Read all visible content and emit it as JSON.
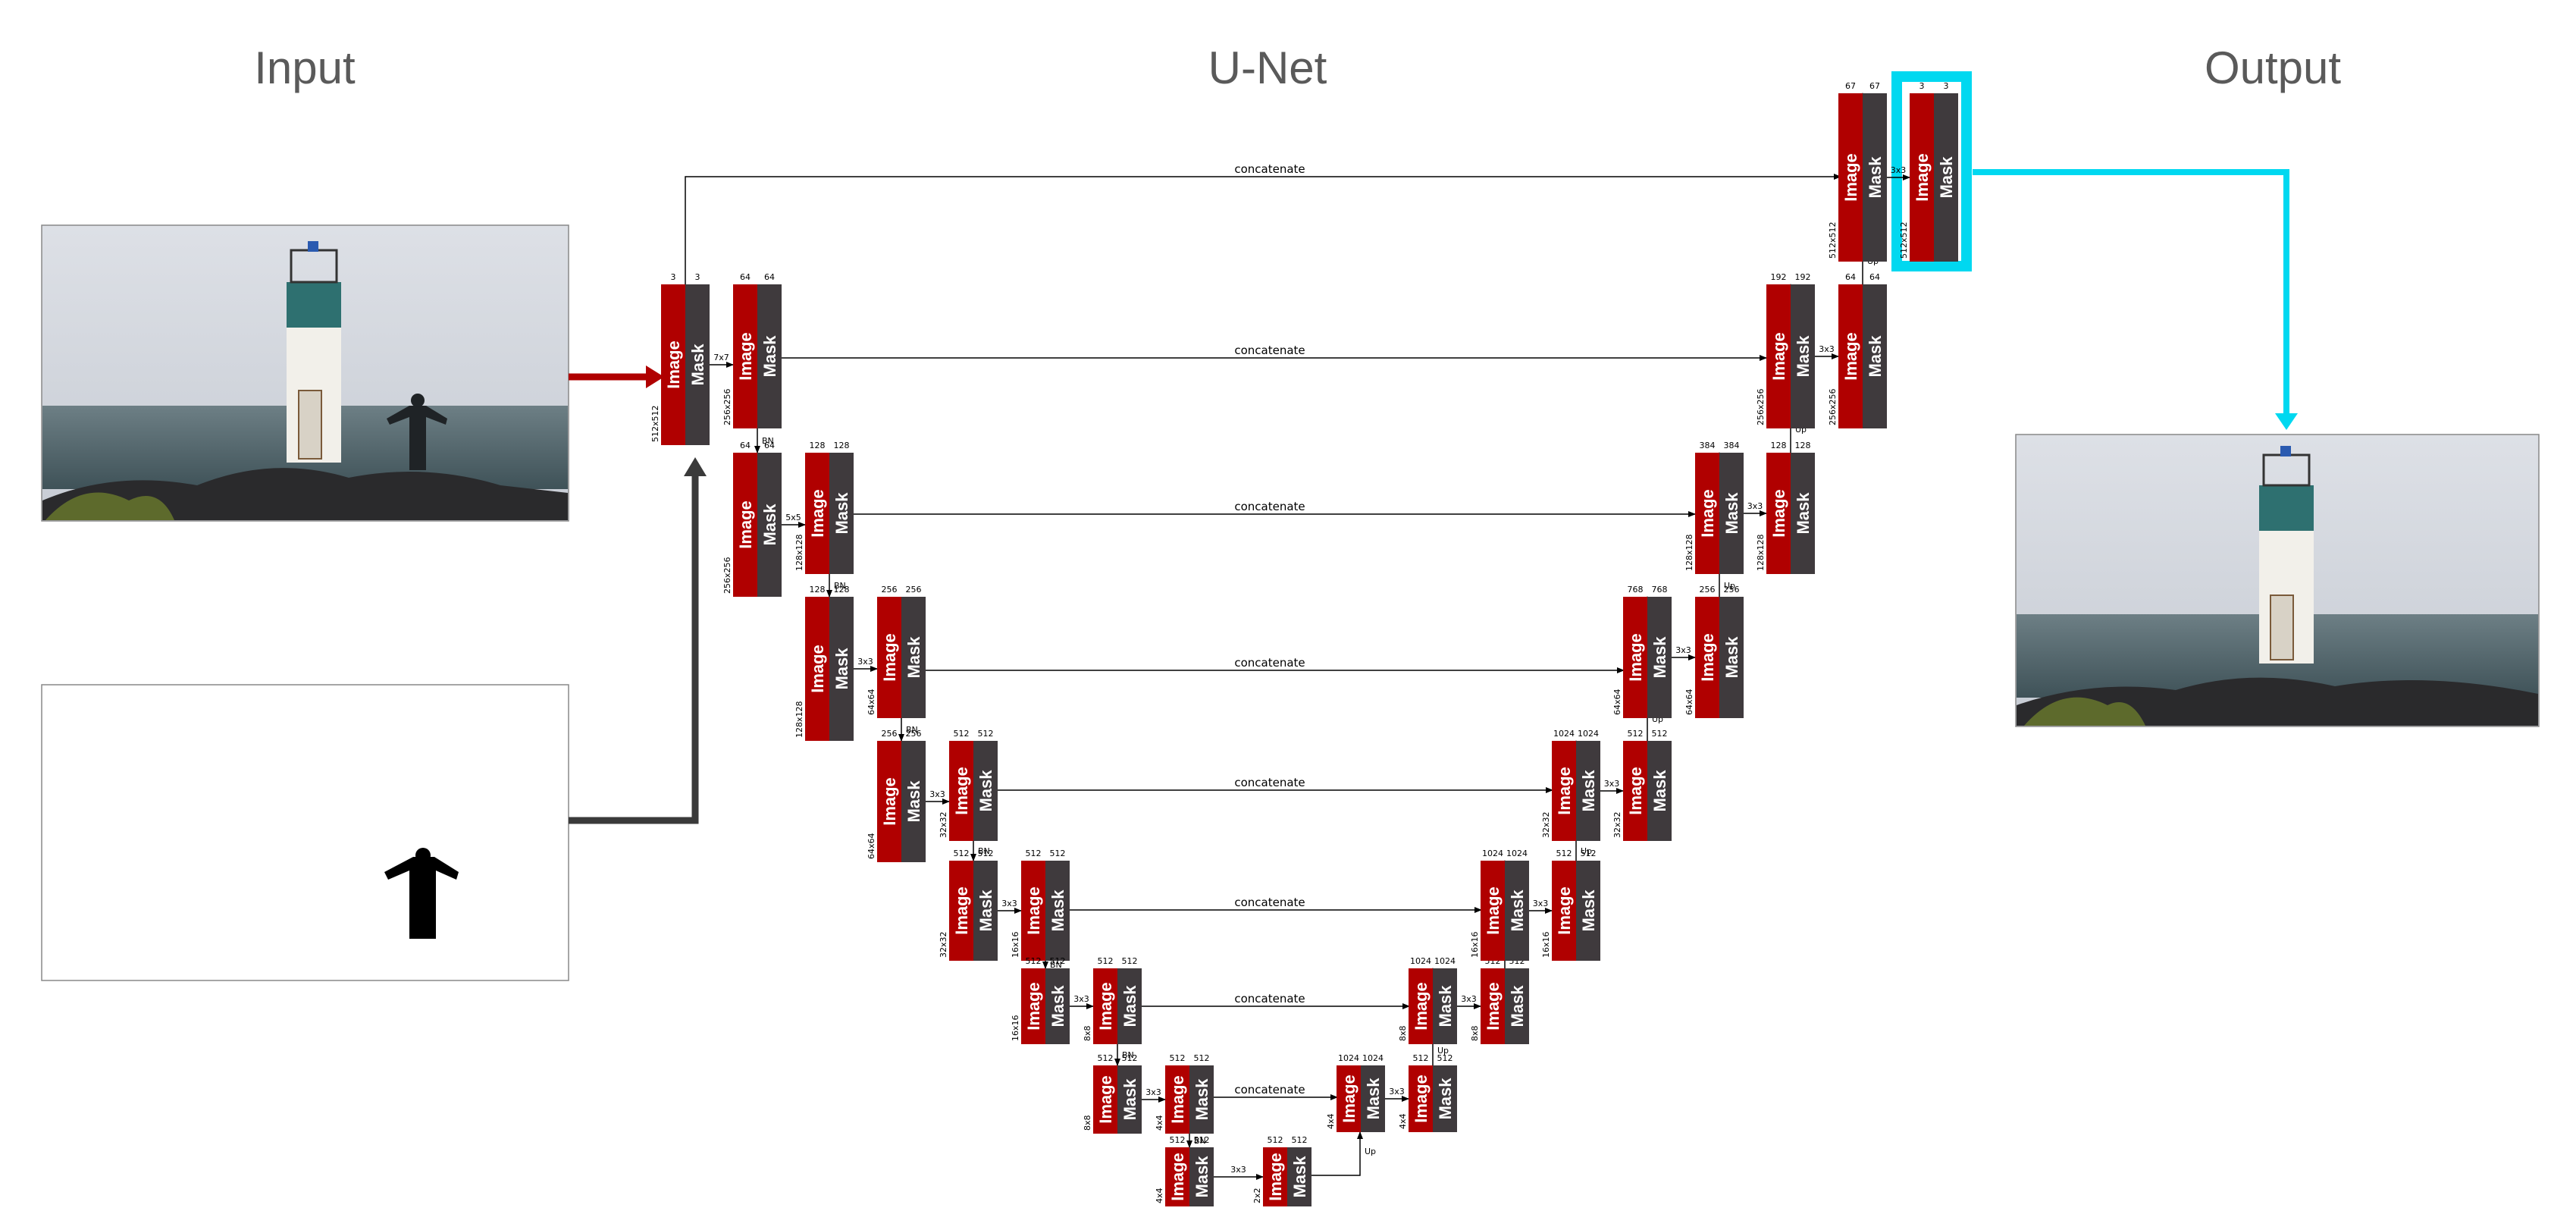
{
  "headers": {
    "input": "Input",
    "unet": "U-Net",
    "output": "Output"
  },
  "block_labels": {
    "image": "Image",
    "mask": "Mask"
  },
  "edge_labels": {
    "concatenate": "concatenate",
    "up": "Up",
    "bn": "BN"
  },
  "colors": {
    "image": "#b00000",
    "mask": "#3f3a3d",
    "highlight": "#00d8f0",
    "arrow_red": "#b00000",
    "arrow_dark": "#3a3a3a"
  },
  "input_photo": {
    "caption": ""
  },
  "blocks": [
    {
      "id": "in",
      "img_ch": "3",
      "mask_ch": "3",
      "size": "512x512",
      "op": "7x7"
    },
    {
      "id": "e1",
      "img_ch": "64",
      "mask_ch": "64",
      "size": "256x256",
      "op": "BN"
    },
    {
      "id": "e1b",
      "img_ch": "64",
      "mask_ch": "64",
      "size": "256x256",
      "op": "5x5"
    },
    {
      "id": "e2",
      "img_ch": "128",
      "mask_ch": "128",
      "size": "128x128",
      "op": "BN"
    },
    {
      "id": "e2b",
      "img_ch": "128",
      "mask_ch": "128",
      "size": "128x128",
      "op": "3x3"
    },
    {
      "id": "e3",
      "img_ch": "256",
      "mask_ch": "256",
      "size": "64x64",
      "op": "BN"
    },
    {
      "id": "e3b",
      "img_ch": "256",
      "mask_ch": "256",
      "size": "64x64",
      "op": "3x3"
    },
    {
      "id": "e4",
      "img_ch": "512",
      "mask_ch": "512",
      "size": "32x32",
      "op": "BN"
    },
    {
      "id": "e4b",
      "img_ch": "512",
      "mask_ch": "512",
      "size": "32x32",
      "op": "3x3"
    },
    {
      "id": "e5",
      "img_ch": "512",
      "mask_ch": "512",
      "size": "16x16",
      "op": "BN"
    },
    {
      "id": "e5b",
      "img_ch": "512",
      "mask_ch": "512",
      "size": "16x16",
      "op": "3x3"
    },
    {
      "id": "e6",
      "img_ch": "512",
      "mask_ch": "512",
      "size": "8x8",
      "op": "BN"
    },
    {
      "id": "e6b",
      "img_ch": "512",
      "mask_ch": "512",
      "size": "8x8",
      "op": "3x3"
    },
    {
      "id": "e7",
      "img_ch": "512",
      "mask_ch": "512",
      "size": "4x4",
      "op": "BN"
    },
    {
      "id": "e7b",
      "img_ch": "512",
      "mask_ch": "512",
      "size": "4x4",
      "op": "3x3"
    },
    {
      "id": "bot",
      "img_ch": "512",
      "mask_ch": "512",
      "size": "2x2",
      "op": "Up"
    },
    {
      "id": "d7c",
      "img_ch": "1024",
      "mask_ch": "1024",
      "size": "4x4",
      "op": "3x3"
    },
    {
      "id": "d7",
      "img_ch": "512",
      "mask_ch": "512",
      "size": "4x4",
      "op": "Up"
    },
    {
      "id": "d6c",
      "img_ch": "1024",
      "mask_ch": "1024",
      "size": "8x8",
      "op": "3x3"
    },
    {
      "id": "d6",
      "img_ch": "512",
      "mask_ch": "512",
      "size": "8x8",
      "op": "Up"
    },
    {
      "id": "d5c",
      "img_ch": "1024",
      "mask_ch": "1024",
      "size": "16x16",
      "op": "3x3"
    },
    {
      "id": "d5",
      "img_ch": "512",
      "mask_ch": "512",
      "size": "16x16",
      "op": "Up"
    },
    {
      "id": "d4c",
      "img_ch": "1024",
      "mask_ch": "1024",
      "size": "32x32",
      "op": "3x3"
    },
    {
      "id": "d4",
      "img_ch": "512",
      "mask_ch": "512",
      "size": "32x32",
      "op": "Up"
    },
    {
      "id": "d3c",
      "img_ch": "768",
      "mask_ch": "768",
      "size": "64x64",
      "op": "3x3"
    },
    {
      "id": "d3",
      "img_ch": "256",
      "mask_ch": "256",
      "size": "64x64",
      "op": "Up"
    },
    {
      "id": "d2c",
      "img_ch": "384",
      "mask_ch": "384",
      "size": "128x128",
      "op": "3x3"
    },
    {
      "id": "d2",
      "img_ch": "128",
      "mask_ch": "128",
      "size": "128x128",
      "op": "Up"
    },
    {
      "id": "d1c",
      "img_ch": "192",
      "mask_ch": "192",
      "size": "256x256",
      "op": "3x3"
    },
    {
      "id": "d1",
      "img_ch": "64",
      "mask_ch": "64",
      "size": "256x256",
      "op": "Up"
    },
    {
      "id": "d0c",
      "img_ch": "67",
      "mask_ch": "67",
      "size": "512x512",
      "op": "3x3"
    },
    {
      "id": "out",
      "img_ch": "3",
      "mask_ch": "3",
      "size": "512x512",
      "op": ""
    }
  ]
}
